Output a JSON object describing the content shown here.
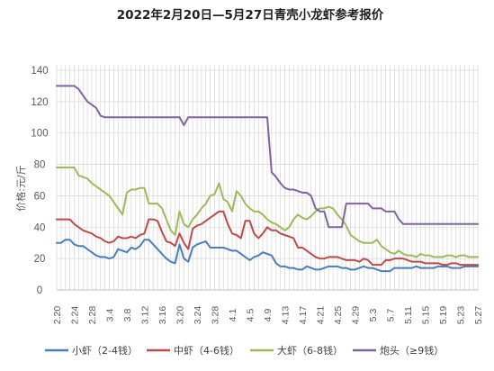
{
  "chart_data": {
    "type": "line",
    "title": "2022年2月20日—5月27日青壳小龙虾参考报价",
    "ylabel": "价格:元/斤",
    "xlabel": "",
    "ylim": [
      0,
      140
    ],
    "yticks": [
      0,
      20,
      40,
      60,
      80,
      100,
      120,
      140
    ],
    "grid": "vertical lines per day, horizontal lines per 20",
    "legend_position": "bottom",
    "x": [
      "2.20",
      "2.21",
      "2.22",
      "2.23",
      "2.24",
      "2.25",
      "2.26",
      "2.27",
      "2.28",
      "3.1",
      "3.2",
      "3.3",
      "3.4",
      "3.5",
      "3.6",
      "3.7",
      "3.8",
      "3.9",
      "3.10",
      "3.11",
      "3.12",
      "3.13",
      "3.14",
      "3.15",
      "3.16",
      "3.17",
      "3.18",
      "3.19",
      "3.20",
      "3.21",
      "3.22",
      "3.23",
      "3.24",
      "3.25",
      "3.26",
      "3.27",
      "3.28",
      "3.29",
      "3.30",
      "3.31",
      "4.1",
      "4.2",
      "4.3",
      "4.4",
      "4.5",
      "4.6",
      "4.7",
      "4.8",
      "4.9",
      "4.10",
      "4.11",
      "4.12",
      "4.13",
      "4.14",
      "4.15",
      "4.16",
      "4.17",
      "4.18",
      "4.19",
      "4.20",
      "4.21",
      "4.22",
      "4.23",
      "4.24",
      "4.25",
      "4.26",
      "4.27",
      "4.28",
      "4.29",
      "4.30",
      "5.1",
      "5.2",
      "5.3",
      "5.4",
      "5.5",
      "5.6",
      "5.7",
      "5.8",
      "5.9",
      "5.10",
      "5.11",
      "5.12",
      "5.13",
      "5.14",
      "5.15",
      "5.16",
      "5.17",
      "5.18",
      "5.19",
      "5.20",
      "5.21",
      "5.22",
      "5.23",
      "5.24",
      "5.25",
      "5.26",
      "5.27"
    ],
    "xtick_labels": [
      "2.20",
      "2.24",
      "2.28",
      "3.4",
      "3.8",
      "3.12",
      "3.16",
      "3.20",
      "3.24",
      "3.28",
      "4.1",
      "4.5",
      "4.9",
      "4.13",
      "4.17",
      "4.21",
      "4.25",
      "4.29",
      "5.3",
      "5.7",
      "5.11",
      "5.15",
      "5.19",
      "5.23",
      "5.27"
    ],
    "series": [
      {
        "name": "小虾（2-4钱）",
        "color": "#4a7ebb",
        "values": [
          30,
          30,
          32,
          32,
          29,
          28,
          28,
          26,
          24,
          22,
          21,
          21,
          20,
          21,
          26,
          25,
          24,
          27,
          26,
          28,
          32,
          32,
          29,
          26,
          23,
          20,
          18,
          17,
          29,
          20,
          18,
          27,
          29,
          30,
          31,
          27,
          27,
          27,
          27,
          26,
          25,
          25,
          23,
          21,
          19,
          21,
          22,
          24,
          23,
          22,
          17,
          15,
          15,
          14,
          14,
          13,
          13,
          15,
          14,
          13,
          13,
          14,
          15,
          15,
          15,
          14,
          14,
          13,
          13,
          14,
          15,
          14,
          14,
          13,
          12,
          12,
          12,
          14,
          14,
          14,
          14,
          14,
          15,
          14,
          14,
          14,
          14,
          15,
          15,
          15,
          14,
          14,
          14,
          15,
          15,
          15,
          15
        ]
      },
      {
        "name": "中虾（4-6钱）",
        "color": "#be4b48",
        "values": [
          45,
          45,
          45,
          45,
          42,
          40,
          38,
          37,
          36,
          34,
          33,
          31,
          30,
          31,
          34,
          33,
          33,
          34,
          33,
          35,
          36,
          45,
          45,
          44,
          37,
          31,
          30,
          28,
          36,
          30,
          26,
          39,
          41,
          42,
          44,
          46,
          48,
          50,
          50,
          42,
          36,
          35,
          33,
          44,
          44,
          36,
          33,
          36,
          40,
          38,
          38,
          36,
          35,
          34,
          33,
          27,
          27,
          25,
          23,
          21,
          20,
          20,
          21,
          21,
          21,
          20,
          19,
          19,
          19,
          18,
          20,
          19,
          16,
          16,
          16,
          19,
          19,
          20,
          20,
          20,
          19,
          18,
          18,
          18,
          17,
          17,
          17,
          17,
          16,
          16,
          17,
          17,
          16,
          16,
          16,
          16,
          16
        ]
      },
      {
        "name": "大虾（6-8钱）",
        "color": "#9bbb59",
        "values": [
          78,
          78,
          78,
          78,
          78,
          73,
          72,
          71,
          68,
          66,
          64,
          62,
          60,
          56,
          52,
          48,
          62,
          64,
          64,
          65,
          65,
          55,
          55,
          55,
          52,
          45,
          38,
          35,
          50,
          42,
          40,
          45,
          48,
          52,
          55,
          60,
          61,
          68,
          58,
          56,
          50,
          63,
          60,
          55,
          52,
          50,
          50,
          48,
          45,
          43,
          42,
          40,
          38,
          40,
          45,
          48,
          46,
          45,
          47,
          50,
          52,
          52,
          53,
          52,
          48,
          45,
          41,
          35,
          33,
          31,
          30,
          30,
          30,
          32,
          28,
          26,
          24,
          23,
          25,
          23,
          22,
          22,
          21,
          23,
          22,
          22,
          21,
          21,
          21,
          22,
          22,
          21,
          22,
          22,
          21,
          21,
          21
        ]
      },
      {
        "name": "炮头（≥9钱）",
        "color": "#7f64a2",
        "values": [
          130,
          130,
          130,
          130,
          130,
          128,
          124,
          120,
          118,
          116,
          111,
          110,
          110,
          110,
          110,
          110,
          110,
          110,
          110,
          110,
          110,
          110,
          110,
          110,
          110,
          110,
          110,
          110,
          110,
          105,
          110,
          110,
          110,
          110,
          110,
          110,
          110,
          110,
          110,
          110,
          110,
          110,
          110,
          110,
          110,
          110,
          110,
          110,
          110,
          75,
          72,
          68,
          65,
          64,
          64,
          63,
          62,
          62,
          60,
          52,
          50,
          50,
          40,
          40,
          40,
          40,
          55,
          55,
          55,
          55,
          55,
          55,
          52,
          52,
          52,
          50,
          50,
          50,
          45,
          42,
          42,
          42,
          42,
          42,
          42,
          42,
          42,
          42,
          42,
          42,
          42,
          42,
          42,
          42,
          42,
          42,
          42
        ]
      }
    ]
  }
}
